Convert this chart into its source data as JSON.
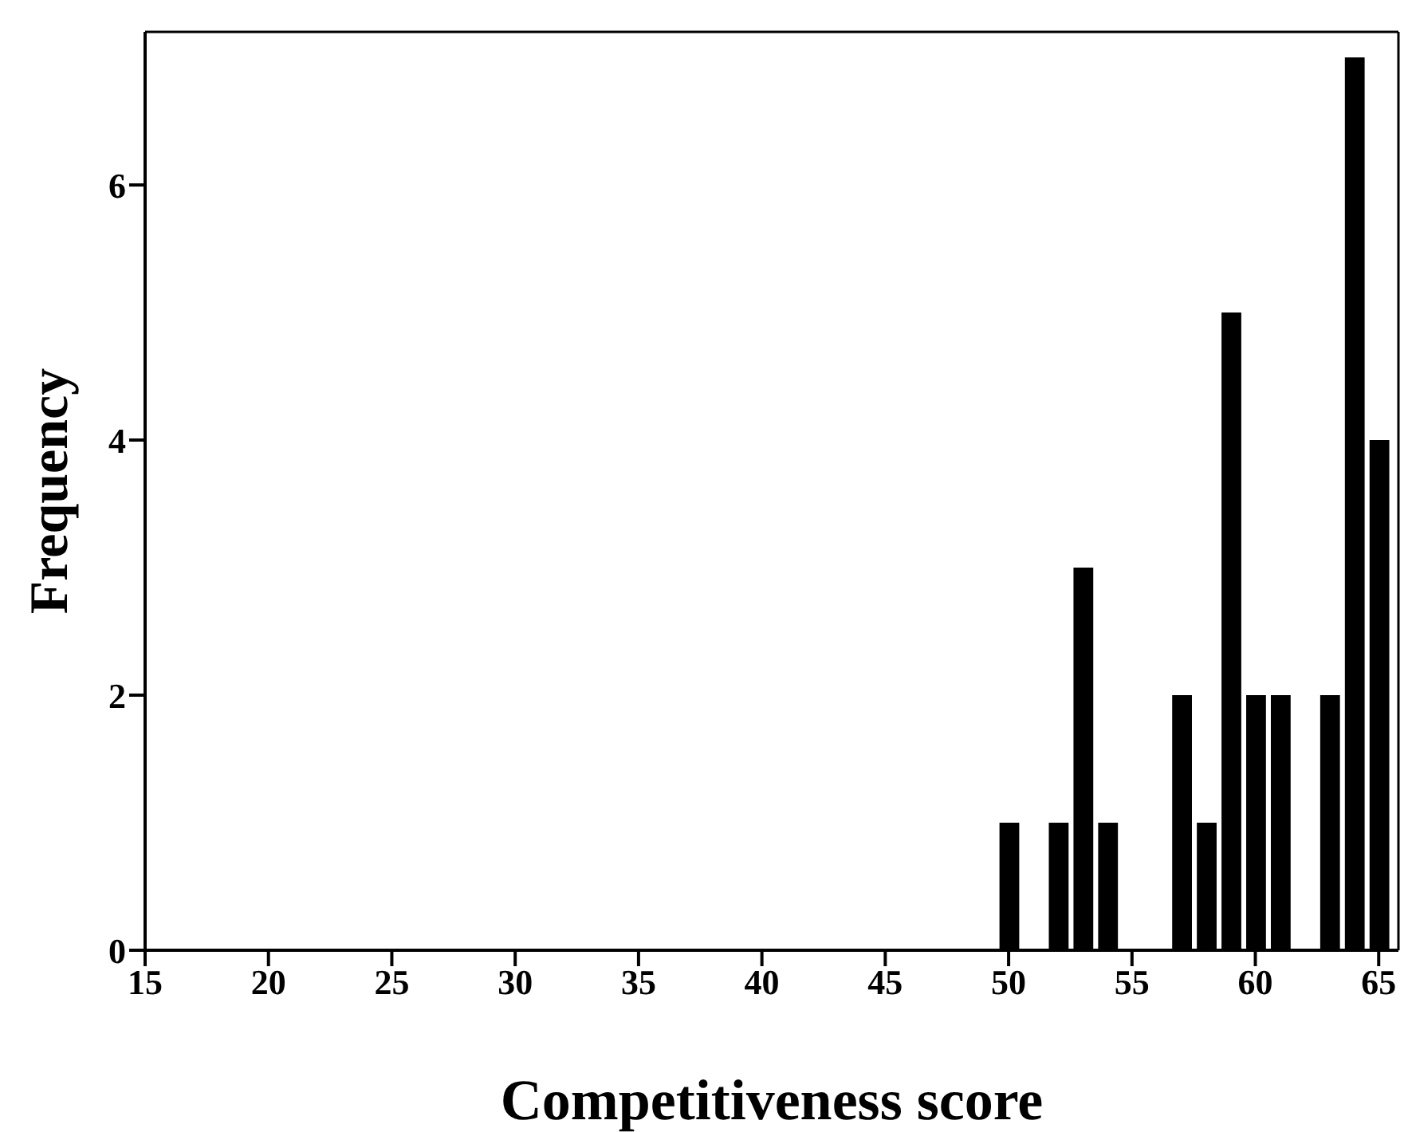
{
  "chart_data": {
    "type": "bar",
    "xlabel": "Competitiveness score",
    "ylabel": "Frequency",
    "x": [
      50,
      52,
      53,
      54,
      57,
      58,
      59,
      60,
      61,
      63,
      64,
      65
    ],
    "series": [
      {
        "color": "#000000",
        "values": [
          1,
          1,
          3,
          1,
          2,
          1,
          5,
          2,
          2,
          2,
          7,
          4
        ]
      }
    ],
    "xlim": [
      15,
      65.8
    ],
    "xticks": [
      15,
      20,
      25,
      30,
      35,
      40,
      45,
      50,
      55,
      60,
      65
    ],
    "ylim": [
      0,
      7.2
    ],
    "yticks": [
      0,
      2,
      4,
      6
    ],
    "grid": false,
    "legend": false
  }
}
